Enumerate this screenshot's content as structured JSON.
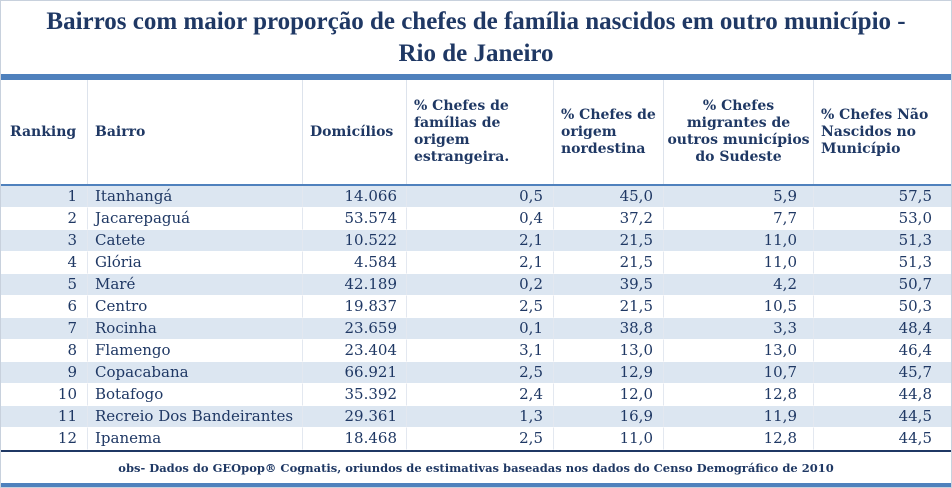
{
  "title": {
    "line1": "Bairros com maior proporção de chefes de família nascidos em outro município -",
    "line2": "Rio de Janeiro"
  },
  "chart_data": {
    "type": "table",
    "title": "Bairros com maior proporção de chefes de família nascidos em outro município - Rio de Janeiro",
    "columns": [
      "Ranking",
      "Bairro",
      "Domicílios",
      "% Chefes de famílias de origem estrangeira.",
      "% Chefes de origem nordestina",
      "% Chefes migrantes de outros municípios do Sudeste",
      "% Chefes Não Nascidos no Município"
    ],
    "rows": [
      [
        "1",
        "Itanhangá",
        "14.066",
        "0,5",
        "45,0",
        "5,9",
        "57,5"
      ],
      [
        "2",
        "Jacarepaguá",
        "53.574",
        "0,4",
        "37,2",
        "7,7",
        "53,0"
      ],
      [
        "3",
        "Catete",
        "10.522",
        "2,1",
        "21,5",
        "11,0",
        "51,3"
      ],
      [
        "4",
        "Glória",
        "4.584",
        "2,1",
        "21,5",
        "11,0",
        "51,3"
      ],
      [
        "5",
        "Maré",
        "42.189",
        "0,2",
        "39,5",
        "4,2",
        "50,7"
      ],
      [
        "6",
        "Centro",
        "19.837",
        "2,5",
        "21,5",
        "10,5",
        "50,3"
      ],
      [
        "7",
        "Rocinha",
        "23.659",
        "0,1",
        "38,8",
        "3,3",
        "48,4"
      ],
      [
        "8",
        "Flamengo",
        "23.404",
        "3,1",
        "13,0",
        "13,0",
        "46,4"
      ],
      [
        "9",
        "Copacabana",
        "66.921",
        "2,5",
        "12,9",
        "10,7",
        "45,7"
      ],
      [
        "10",
        "Botafogo",
        "35.392",
        "2,4",
        "12,0",
        "12,8",
        "44,8"
      ],
      [
        "11",
        "Recreio Dos Bandeirantes",
        "29.361",
        "1,3",
        "16,9",
        "11,9",
        "44,5"
      ],
      [
        "12",
        "Ipanema",
        "18.468",
        "2,5",
        "11,0",
        "12,8",
        "44,5"
      ]
    ]
  },
  "footer": {
    "note": "obs- Dados do GEOpop® Cognatis, oriundos de estimativas baseadas nos dados do Censo Demográfico de 2010"
  },
  "colors": {
    "text_navy": "#1f3864",
    "accent_steel_blue": "#4f81bd",
    "row_stripe": "#dce6f1",
    "cell_border": "#e3e8f0"
  }
}
